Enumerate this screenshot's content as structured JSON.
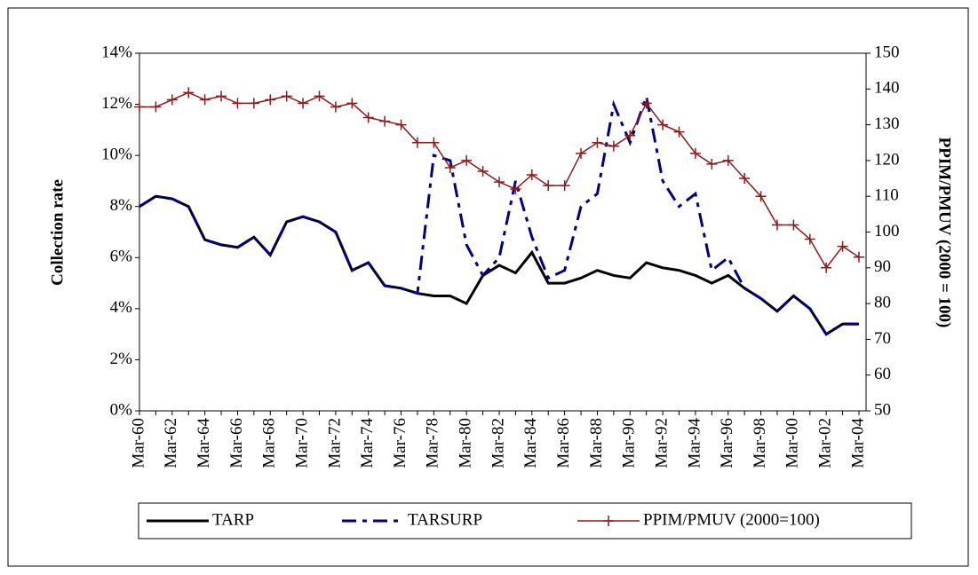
{
  "chart_data": {
    "type": "line",
    "y_label": "Collection rate",
    "y2_label": "PPIM/PMUV (2000 = 100)",
    "categories": [
      "Mar-60",
      null,
      "Mar-62",
      null,
      "Mar-64",
      null,
      "Mar-66",
      null,
      "Mar-68",
      null,
      "Mar-70",
      null,
      "Mar-72",
      null,
      "Mar-74",
      null,
      "Mar-76",
      null,
      "Mar-78",
      null,
      "Mar-80",
      null,
      "Mar-82",
      null,
      "Mar-84",
      null,
      "Mar-86",
      null,
      "Mar-88",
      null,
      "Mar-90",
      null,
      "Mar-92",
      null,
      "Mar-94",
      null,
      "Mar-96",
      null,
      "Mar-98",
      null,
      "Mar-00",
      null,
      "Mar-02",
      null,
      "Mar-04"
    ],
    "series": [
      {
        "name": "TARP",
        "color": "#000000",
        "dash": "solid",
        "values": [
          8.0,
          8.4,
          8.3,
          8.0,
          6.7,
          6.5,
          6.4,
          6.8,
          6.1,
          7.4,
          7.6,
          7.4,
          7.0,
          5.5,
          5.8,
          4.9,
          4.8,
          4.6,
          4.5,
          4.5,
          4.2,
          5.3,
          5.7,
          5.4,
          6.2,
          5.0,
          5.0,
          5.2,
          5.5,
          5.3,
          5.2,
          5.8,
          5.6,
          5.5,
          5.3,
          5.0,
          5.3,
          4.8,
          4.4,
          3.9,
          4.5,
          4.0,
          3.0,
          3.4,
          3.4
        ]
      },
      {
        "name": "TARSURP",
        "color": "#000080",
        "dash": "dashdot",
        "values": [
          8.0,
          8.4,
          8.3,
          8.0,
          6.7,
          6.5,
          6.4,
          6.8,
          6.1,
          7.4,
          7.6,
          7.4,
          7.0,
          5.5,
          5.8,
          4.9,
          4.8,
          4.6,
          10.0,
          9.8,
          6.5,
          5.3,
          6.0,
          9.0,
          6.8,
          5.2,
          5.5,
          8.0,
          8.5,
          12.0,
          10.5,
          12.3,
          9.0,
          8.0,
          8.5,
          5.5,
          6.0,
          4.8,
          4.4,
          3.9,
          4.5,
          4.0,
          3.0,
          3.4,
          3.4
        ]
      },
      {
        "name": "PPIM/PMUV (2000=100)",
        "color": "#8b1a1a",
        "dash": "solid",
        "marker": "plus",
        "axis": "y2",
        "values": [
          135,
          135,
          137,
          139,
          137,
          138,
          136,
          136,
          137,
          138,
          136,
          138,
          135,
          136,
          132,
          131,
          130,
          125,
          125,
          118,
          120,
          117,
          114,
          112,
          116,
          113,
          113,
          122,
          125,
          124,
          127,
          136,
          130,
          128,
          122,
          119,
          120,
          115,
          110,
          102,
          102,
          98,
          90,
          96,
          93
        ]
      }
    ],
    "ylim": [
      0,
      14
    ],
    "yticks": [
      {
        "value": 0,
        "label": "0%"
      },
      {
        "value": 2,
        "label": "2%"
      },
      {
        "value": 4,
        "label": "4%"
      },
      {
        "value": 6,
        "label": "6%"
      },
      {
        "value": 8,
        "label": "8%"
      },
      {
        "value": 10,
        "label": "10%"
      },
      {
        "value": 12,
        "label": "12%"
      },
      {
        "value": 14,
        "label": "14%"
      }
    ],
    "y2lim": [
      50,
      150
    ],
    "y2ticks": [
      50,
      60,
      70,
      80,
      90,
      100,
      110,
      120,
      130,
      140,
      150
    ],
    "grid": false,
    "legend": "bottom"
  }
}
